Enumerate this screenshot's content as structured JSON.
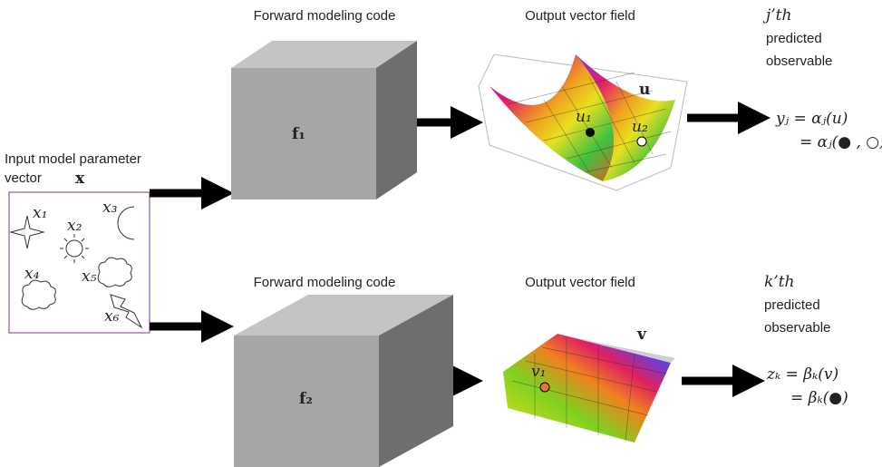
{
  "input": {
    "label_lines": [
      "Input model parameter",
      "vector"
    ],
    "symbol": "x",
    "params": [
      "x₁",
      "x₂",
      "x₃",
      "x₄",
      "x₅",
      "x₆"
    ]
  },
  "paths": [
    {
      "code_label": "Forward modeling code",
      "operator": "f₁",
      "field_label": "Output vector field",
      "field_symbol": "u",
      "points": [
        "u₁",
        "u₂"
      ],
      "observable_lines": [
        "j’th",
        "predicted",
        "observable"
      ],
      "equation": [
        "yⱼ = αⱼ(u)",
        "= αⱼ(● , ○)"
      ]
    },
    {
      "code_label": "Forward modeling code",
      "operator": "f₂",
      "field_label": "Output vector field",
      "field_symbol": "v",
      "points": [
        "v₁"
      ],
      "observable_lines": [
        "k’th",
        "predicted",
        "observable"
      ],
      "equation": [
        "zₖ = βₖ(v)",
        "= βₖ(●)"
      ]
    }
  ]
}
